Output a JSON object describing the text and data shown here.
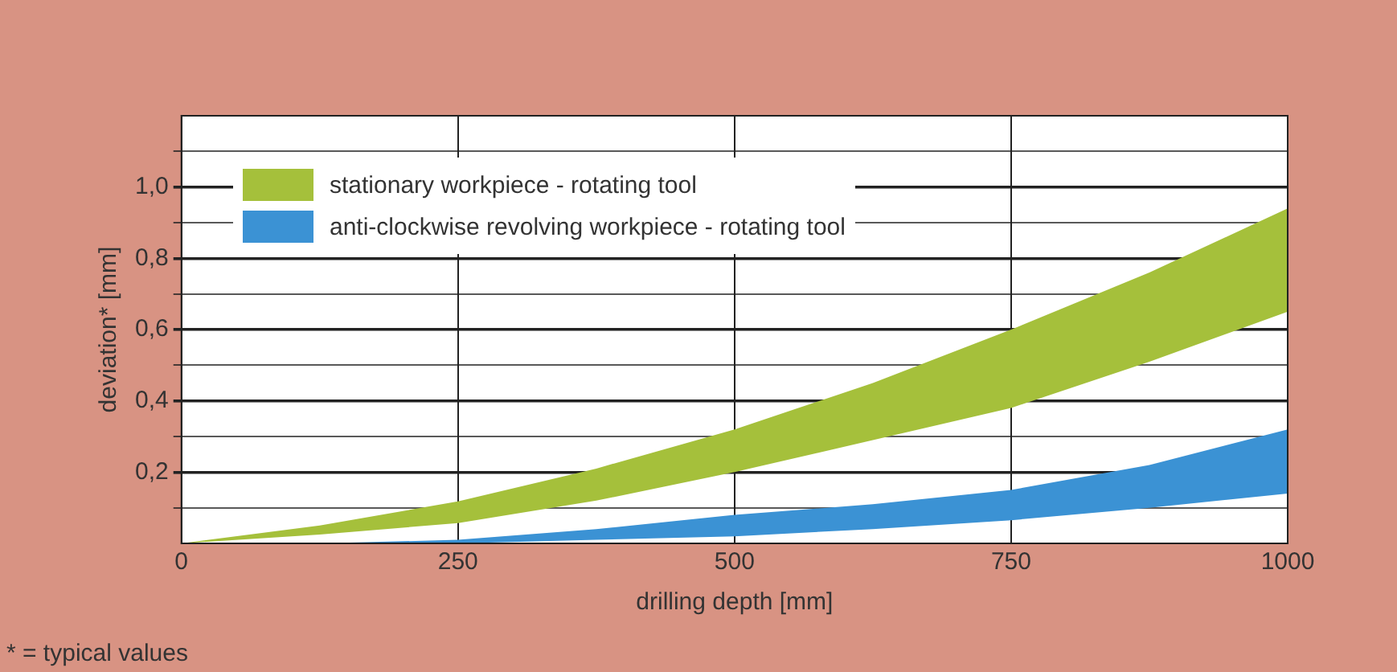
{
  "chart_data": {
    "type": "area",
    "xlabel": "drilling depth [mm]",
    "ylabel": "deviation* [mm]",
    "xlim": [
      0,
      1000
    ],
    "xticks": [
      0,
      250,
      500,
      750,
      1000
    ],
    "ylim": [
      0,
      1.2
    ],
    "yticks": [
      {
        "value": 0.1,
        "label": null
      },
      {
        "value": 0.2,
        "label": "0,2"
      },
      {
        "value": 0.3,
        "label": null
      },
      {
        "value": 0.4,
        "label": "0,4"
      },
      {
        "value": 0.5,
        "label": null
      },
      {
        "value": 0.6,
        "label": "0,6"
      },
      {
        "value": 0.7,
        "label": null
      },
      {
        "value": 0.8,
        "label": "0,8"
      },
      {
        "value": 0.9,
        "label": null
      },
      {
        "value": 1.0,
        "label": "1,0"
      },
      {
        "value": 1.1,
        "label": null
      }
    ],
    "grid": true,
    "legend": "top left",
    "series": [
      {
        "name": "stationary workpiece - rotating tool",
        "color": "#a5c03b",
        "x": [
          0,
          125,
          250,
          375,
          500,
          625,
          750,
          875,
          1000
        ],
        "values": [
          null,
          null,
          null,
          null,
          null,
          null,
          null,
          null,
          null
        ],
        "lower": [
          0,
          0.025,
          0.057,
          0.12,
          0.2,
          0.29,
          0.38,
          0.51,
          0.65
        ],
        "upper": [
          0,
          0.05,
          0.118,
          0.21,
          0.32,
          0.45,
          0.6,
          0.76,
          0.94
        ]
      },
      {
        "name": "anti-clockwise revolving workpiece - rotating tool",
        "color": "#3b92d4",
        "x": [
          125,
          250,
          375,
          500,
          625,
          750,
          875,
          1000
        ],
        "values": [
          null,
          null,
          null,
          null,
          null,
          null,
          null,
          null
        ],
        "lower": [
          0,
          0,
          0.01,
          0.02,
          0.04,
          0.065,
          0.1,
          0.14
        ],
        "upper": [
          0,
          0.01,
          0.04,
          0.08,
          0.11,
          0.15,
          0.22,
          0.32
        ]
      }
    ],
    "annotations": [
      "* = typical values"
    ]
  }
}
